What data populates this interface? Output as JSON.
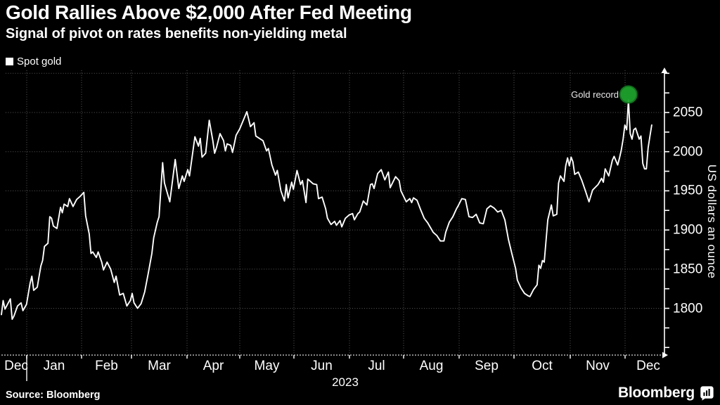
{
  "header": {
    "title": "Gold Rallies Above $2,000 After Fed Meeting",
    "subtitle": "Signal of pivot on rates benefits non-yielding metal"
  },
  "legend": {
    "label": "Spot gold"
  },
  "footer": {
    "source": "Source: Bloomberg",
    "brand": "Bloomberg"
  },
  "colors": {
    "background": "#000000",
    "line": "#ffffff",
    "marker_green": "#1ea32c",
    "marker_green_edge": "#0f7a1e",
    "grid": "#8f8f8f",
    "axis": "#ffffff"
  },
  "chart_data": {
    "type": "line",
    "title": "Gold Rallies Above $2,000 After Fed Meeting",
    "subtitle": "Signal of pivot on rates benefits non-yielding metal",
    "series_name": "Spot gold",
    "ylabel": "US dollars an ounce",
    "year_label": "2023",
    "y_ticks": [
      2050,
      2000,
      1950,
      1900,
      1850,
      1800
    ],
    "ylim": [
      1740,
      2100
    ],
    "grid": true,
    "legend_position": "top-left",
    "x_months": [
      "Dec",
      "Jan",
      "Feb",
      "Mar",
      "Apr",
      "May",
      "Jun",
      "Jul",
      "Aug",
      "Sep",
      "Oct",
      "Nov",
      "Dec"
    ],
    "x_start_date": "2022-12-20",
    "x_end_date": "2023-12-17",
    "annotation": {
      "label": "Gold record",
      "day": 350,
      "value": 2073
    },
    "points": [
      [
        0,
        1792
      ],
      [
        1,
        1810
      ],
      [
        2,
        1799
      ],
      [
        5,
        1812
      ],
      [
        6,
        1786
      ],
      [
        7,
        1790
      ],
      [
        9,
        1803
      ],
      [
        11,
        1807
      ],
      [
        12,
        1797
      ],
      [
        14,
        1805
      ],
      [
        16,
        1832
      ],
      [
        17,
        1841
      ],
      [
        18,
        1823
      ],
      [
        20,
        1827
      ],
      [
        22,
        1854
      ],
      [
        23,
        1861
      ],
      [
        24,
        1879
      ],
      [
        26,
        1883
      ],
      [
        27,
        1917
      ],
      [
        28,
        1915
      ],
      [
        29,
        1905
      ],
      [
        31,
        1902
      ],
      [
        33,
        1929
      ],
      [
        34,
        1922
      ],
      [
        35,
        1933
      ],
      [
        37,
        1930
      ],
      [
        38,
        1940
      ],
      [
        40,
        1930
      ],
      [
        42,
        1939
      ],
      [
        44,
        1943
      ],
      [
        46,
        1948
      ],
      [
        47,
        1918
      ],
      [
        49,
        1895
      ],
      [
        50,
        1870
      ],
      [
        51,
        1872
      ],
      [
        53,
        1865
      ],
      [
        54,
        1872
      ],
      [
        56,
        1859
      ],
      [
        57,
        1849
      ],
      [
        59,
        1859
      ],
      [
        61,
        1850
      ],
      [
        63,
        1833
      ],
      [
        64,
        1841
      ],
      [
        66,
        1817
      ],
      [
        68,
        1819
      ],
      [
        70,
        1803
      ],
      [
        72,
        1810
      ],
      [
        73,
        1819
      ],
      [
        74,
        1807
      ],
      [
        76,
        1800
      ],
      [
        78,
        1806
      ],
      [
        80,
        1821
      ],
      [
        82,
        1845
      ],
      [
        84,
        1870
      ],
      [
        85,
        1890
      ],
      [
        87,
        1910
      ],
      [
        88,
        1917
      ],
      [
        90,
        1986
      ],
      [
        91,
        1960
      ],
      [
        94,
        1936
      ],
      [
        97,
        1990
      ],
      [
        99,
        1953
      ],
      [
        101,
        1969
      ],
      [
        102,
        1962
      ],
      [
        104,
        1977
      ],
      [
        105,
        1969
      ],
      [
        108,
        2019
      ],
      [
        110,
        2007
      ],
      [
        111,
        2017
      ],
      [
        112,
        1993
      ],
      [
        114,
        1998
      ],
      [
        116,
        2040
      ],
      [
        118,
        2014
      ],
      [
        119,
        1998
      ],
      [
        120,
        2005
      ],
      [
        122,
        2023
      ],
      [
        124,
        2014
      ],
      [
        125,
        2001
      ],
      [
        126,
        2010
      ],
      [
        128,
        2008
      ],
      [
        129,
        1999
      ],
      [
        131,
        2021
      ],
      [
        133,
        2029
      ],
      [
        137,
        2051
      ],
      [
        139,
        2032
      ],
      [
        141,
        2037
      ],
      [
        142,
        2020
      ],
      [
        144,
        2017
      ],
      [
        146,
        2014
      ],
      [
        148,
        2001
      ],
      [
        149,
        2004
      ],
      [
        151,
        1983
      ],
      [
        153,
        1970
      ],
      [
        154,
        1976
      ],
      [
        156,
        1950
      ],
      [
        158,
        1937
      ],
      [
        159,
        1958
      ],
      [
        160,
        1941
      ],
      [
        162,
        1961
      ],
      [
        163,
        1952
      ],
      [
        165,
        1976
      ],
      [
        167,
        1958
      ],
      [
        168,
        1963
      ],
      [
        170,
        1935
      ],
      [
        171,
        1965
      ],
      [
        172,
        1963
      ],
      [
        174,
        1959
      ],
      [
        176,
        1958
      ],
      [
        177,
        1940
      ],
      [
        179,
        1942
      ],
      [
        181,
        1927
      ],
      [
        182,
        1915
      ],
      [
        184,
        1907
      ],
      [
        186,
        1911
      ],
      [
        187,
        1906
      ],
      [
        189,
        1912
      ],
      [
        190,
        1904
      ],
      [
        192,
        1915
      ],
      [
        194,
        1919
      ],
      [
        196,
        1921
      ],
      [
        197,
        1913
      ],
      [
        199,
        1921
      ],
      [
        200,
        1923
      ],
      [
        202,
        1937
      ],
      [
        204,
        1932
      ],
      [
        206,
        1958
      ],
      [
        207,
        1959
      ],
      [
        208,
        1953
      ],
      [
        210,
        1972
      ],
      [
        212,
        1977
      ],
      [
        214,
        1964
      ],
      [
        216,
        1974
      ],
      [
        217,
        1954
      ],
      [
        220,
        1968
      ],
      [
        222,
        1963
      ],
      [
        223,
        1950
      ],
      [
        226,
        1936
      ],
      [
        228,
        1940
      ],
      [
        229,
        1935
      ],
      [
        230,
        1941
      ],
      [
        232,
        1938
      ],
      [
        234,
        1926
      ],
      [
        236,
        1915
      ],
      [
        238,
        1909
      ],
      [
        241,
        1897
      ],
      [
        243,
        1893
      ],
      [
        245,
        1886
      ],
      [
        247,
        1886
      ],
      [
        248,
        1897
      ],
      [
        250,
        1910
      ],
      [
        252,
        1917
      ],
      [
        254,
        1927
      ],
      [
        255,
        1931
      ],
      [
        257,
        1940
      ],
      [
        259,
        1939
      ],
      [
        261,
        1917
      ],
      [
        263,
        1916
      ],
      [
        265,
        1920
      ],
      [
        267,
        1909
      ],
      [
        269,
        1908
      ],
      [
        271,
        1927
      ],
      [
        273,
        1931
      ],
      [
        275,
        1928
      ],
      [
        277,
        1923
      ],
      [
        279,
        1925
      ],
      [
        281,
        1913
      ],
      [
        283,
        1888
      ],
      [
        285,
        1869
      ],
      [
        287,
        1851
      ],
      [
        288,
        1836
      ],
      [
        290,
        1826
      ],
      [
        292,
        1819
      ],
      [
        294,
        1816
      ],
      [
        295,
        1815
      ],
      [
        297,
        1824
      ],
      [
        299,
        1830
      ],
      [
        300,
        1855
      ],
      [
        301,
        1851
      ],
      [
        302,
        1861
      ],
      [
        303,
        1859
      ],
      [
        305,
        1913
      ],
      [
        307,
        1932
      ],
      [
        308,
        1918
      ],
      [
        310,
        1920
      ],
      [
        311,
        1960
      ],
      [
        312,
        1969
      ],
      [
        314,
        1962
      ],
      [
        315,
        1982
      ],
      [
        316,
        1992
      ],
      [
        317,
        1982
      ],
      [
        318,
        1993
      ],
      [
        319,
        1987
      ],
      [
        320,
        1971
      ],
      [
        322,
        1974
      ],
      [
        324,
        1963
      ],
      [
        326,
        1950
      ],
      [
        328,
        1936
      ],
      [
        330,
        1951
      ],
      [
        333,
        1958
      ],
      [
        335,
        1966
      ],
      [
        336,
        1961
      ],
      [
        337,
        1978
      ],
      [
        339,
        1969
      ],
      [
        341,
        1989
      ],
      [
        342,
        1994
      ],
      [
        344,
        1983
      ],
      [
        345,
        1992
      ],
      [
        346,
        2002
      ],
      [
        347,
        2016
      ],
      [
        348,
        2034
      ],
      [
        349,
        2028
      ],
      [
        350,
        2066
      ],
      [
        351,
        2023
      ],
      [
        352,
        2016
      ],
      [
        353,
        2028
      ],
      [
        354,
        2030
      ],
      [
        356,
        2016
      ],
      [
        357,
        2020
      ],
      [
        358,
        1985
      ],
      [
        359,
        1978
      ],
      [
        360,
        1978
      ],
      [
        361,
        2005
      ],
      [
        362,
        2020
      ],
      [
        363,
        2034
      ]
    ]
  }
}
